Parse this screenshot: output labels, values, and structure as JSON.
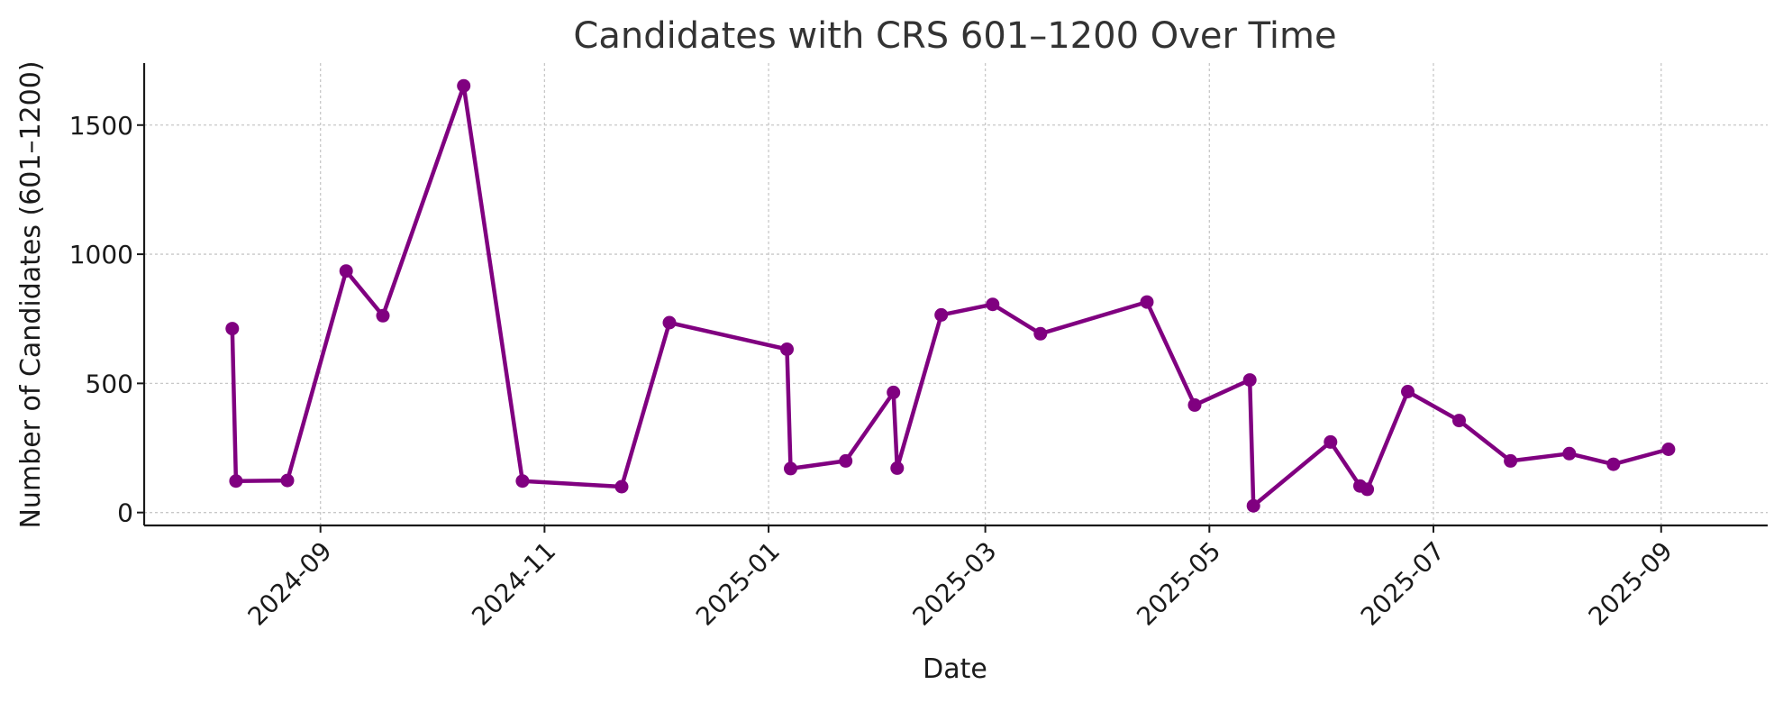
{
  "chart_data": {
    "type": "line",
    "title": "Candidates with CRS 601–1200 Over Time",
    "xlabel": "Date",
    "ylabel": "Number of Candidates (601–1200)",
    "xlim": [
      "2024-07-15",
      "2025-09-30"
    ],
    "ylim": [
      -50,
      1740
    ],
    "x_ticks": [
      "2024-09",
      "2024-11",
      "2025-01",
      "2025-03",
      "2025-05",
      "2025-07",
      "2025-09"
    ],
    "y_ticks": [
      0,
      500,
      1000,
      1500
    ],
    "grid": true,
    "color": "#800080",
    "series": [
      {
        "x": [
          "2024-08-08",
          "2024-08-09",
          "2024-08-23",
          "2024-09-08",
          "2024-09-18",
          "2024-10-10",
          "2024-10-26",
          "2024-11-22",
          "2024-12-05",
          "2025-01-06",
          "2025-01-07",
          "2025-01-22",
          "2025-02-04",
          "2025-02-05",
          "2025-02-17",
          "2025-03-03",
          "2025-03-16",
          "2025-04-14",
          "2025-04-27",
          "2025-05-12",
          "2025-05-13",
          "2025-06-03",
          "2025-06-11",
          "2025-06-13",
          "2025-06-24",
          "2025-07-08",
          "2025-07-22",
          "2025-08-07",
          "2025-08-19",
          "2025-09-03"
        ],
        "y": [
          712,
          122,
          124,
          935,
          762,
          1652,
          122,
          100,
          735,
          632,
          170,
          200,
          465,
          172,
          765,
          806,
          692,
          815,
          416,
          513,
          26,
          273,
          103,
          90,
          468,
          356,
          200,
          228,
          187,
          245
        ]
      }
    ]
  }
}
